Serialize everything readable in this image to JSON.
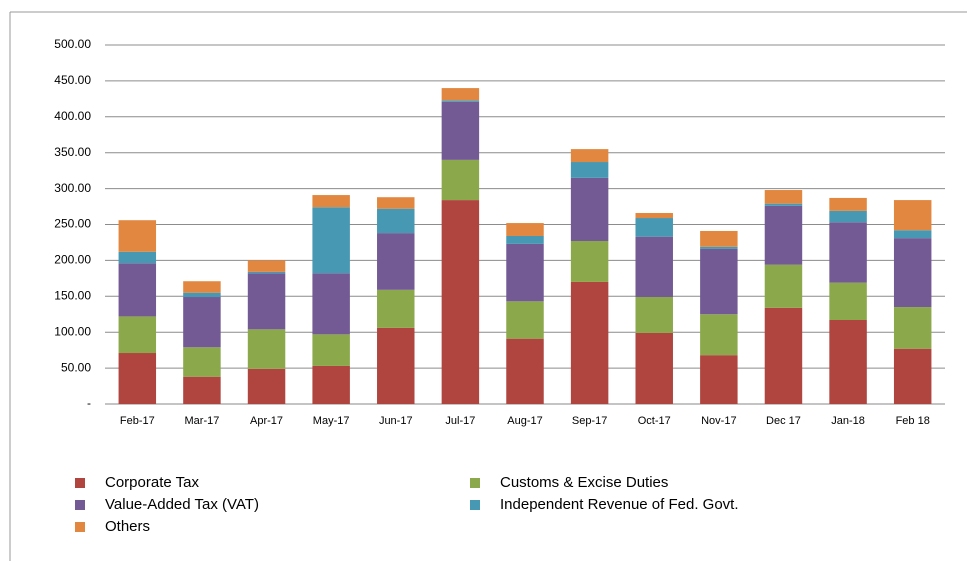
{
  "chart_data": {
    "type": "stacked_bar",
    "categories": [
      "Feb-17",
      "Mar-17",
      "Apr-17",
      "May-17",
      "Jun-17",
      "Jul-17",
      "Aug-17",
      "Sep-17",
      "Oct-17",
      "Nov-17",
      "Dec 17",
      "Jan-18",
      "Feb 18"
    ],
    "series": [
      {
        "name": "Corporate Tax",
        "color": "#b0443f",
        "values": [
          71,
          38,
          49,
          53,
          106,
          284,
          91,
          170,
          99,
          68,
          134,
          117,
          77
        ]
      },
      {
        "name": "Customs & Excise Duties",
        "color": "#8ba84b",
        "values": [
          51,
          41,
          55,
          44,
          53,
          56,
          52,
          57,
          50,
          57,
          60,
          52,
          58
        ]
      },
      {
        "name": "Value-Added Tax (VAT)",
        "color": "#735a94",
        "values": [
          74,
          70,
          78,
          85,
          79,
          81,
          80,
          88,
          84,
          91,
          82,
          84,
          96
        ]
      },
      {
        "name": "Independent Revenue of Fed. Govt.",
        "color": "#4698b3",
        "values": [
          16,
          6,
          2,
          92,
          34,
          2,
          11,
          22,
          26,
          3,
          3,
          16,
          11
        ]
      },
      {
        "name": "Others",
        "color": "#e2873f",
        "values": [
          44,
          16,
          16,
          17,
          16,
          17,
          18,
          18,
          7,
          22,
          19,
          18,
          42
        ]
      }
    ],
    "ylim": [
      0,
      500
    ],
    "yticks": [
      {
        "value": 0,
        "label": "-"
      },
      {
        "value": 50,
        "label": "50.00"
      },
      {
        "value": 100,
        "label": "100.00"
      },
      {
        "value": 150,
        "label": "150.00"
      },
      {
        "value": 200,
        "label": "200.00"
      },
      {
        "value": 250,
        "label": "250.00"
      },
      {
        "value": 300,
        "label": "300.00"
      },
      {
        "value": 350,
        "label": "350.00"
      },
      {
        "value": 400,
        "label": "400.00"
      },
      {
        "value": 450,
        "label": "450.00"
      },
      {
        "value": 500,
        "label": "500.00"
      }
    ],
    "grid": true
  }
}
